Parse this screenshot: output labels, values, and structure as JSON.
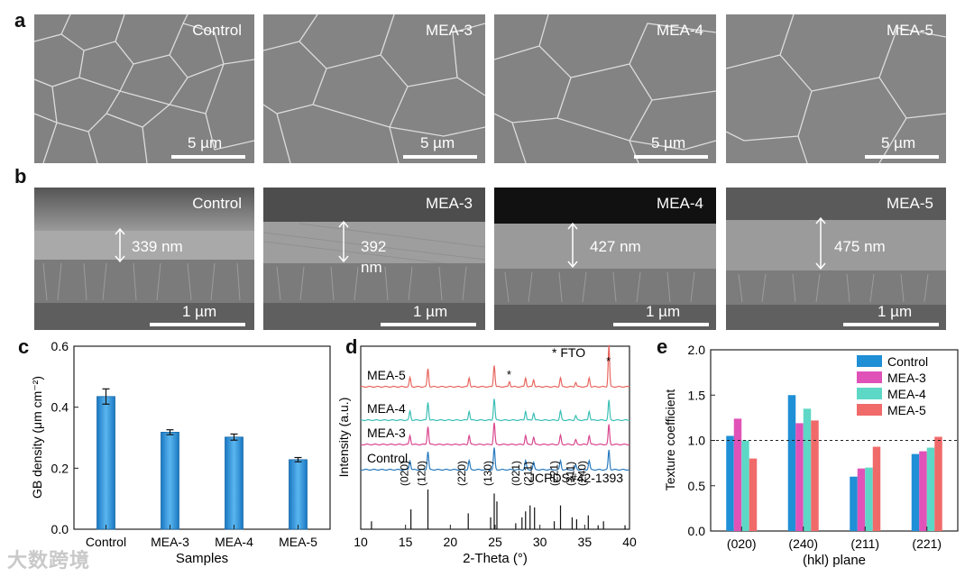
{
  "panel_labels": {
    "a": "a",
    "b": "b",
    "c": "c",
    "d": "d",
    "e": "e"
  },
  "row_a": {
    "images": [
      {
        "label": "Control",
        "scale": "5 µm"
      },
      {
        "label": "MEA-3",
        "scale": "5 µm"
      },
      {
        "label": "MEA-4",
        "scale": "5 µm"
      },
      {
        "label": "MEA-5",
        "scale": "5 µm"
      }
    ]
  },
  "row_b": {
    "images": [
      {
        "label": "Control",
        "thickness": "339 nm",
        "scale": "1 µm"
      },
      {
        "label": "MEA-3",
        "thickness_line1": "392",
        "thickness_line2": "nm",
        "scale": "1 µm"
      },
      {
        "label": "MEA-4",
        "thickness": "427 nm",
        "scale": "1 µm"
      },
      {
        "label": "MEA-5",
        "thickness": "475 nm",
        "scale": "1 µm"
      }
    ]
  },
  "colors": {
    "control": "#1f8fd6",
    "mea3": "#e052b8",
    "mea4": "#5ed8c6",
    "mea5": "#f06a6a",
    "xrd_mea5": "#e8675f",
    "xrd_mea4": "#3dbfb6",
    "xrd_mea3": "#d9488f",
    "xrd_control": "#2a7bbf"
  },
  "chart_data": [
    {
      "type": "bar",
      "panel": "c",
      "categories": [
        "Control",
        "MEA-3",
        "MEA-4",
        "MEA-5"
      ],
      "values": [
        0.435,
        0.318,
        0.302,
        0.228
      ],
      "errors": [
        0.025,
        0.008,
        0.01,
        0.007
      ],
      "xlabel": "Samples",
      "ylabel": "GB density (μm cm⁻²)",
      "ylim": [
        0.0,
        0.6
      ],
      "yticks": [
        "0.0",
        "0.2",
        "0.4",
        "0.6"
      ]
    },
    {
      "type": "line",
      "panel": "d",
      "xlabel": "2-Theta (°)",
      "ylabel": "Intensity (a.u.)",
      "xlim": [
        10,
        40
      ],
      "xticks": [
        "10",
        "15",
        "20",
        "25",
        "30",
        "35",
        "40"
      ],
      "annotation": "* FTO",
      "reference_label": "JCPDS#42-1393",
      "series": [
        "MEA-5",
        "MEA-4",
        "MEA-3",
        "Control"
      ],
      "peaks": [
        15.5,
        17.5,
        22.1,
        24.9,
        28.4,
        29.3,
        32.3,
        34.0,
        35.5,
        37.7
      ],
      "fto_peaks": [
        26.6,
        37.7
      ],
      "reference_peaks": [
        {
          "x": 11.2,
          "h": 0.2
        },
        {
          "x": 15.6,
          "h": 0.5
        },
        {
          "x": 17.5,
          "h": 1.0
        },
        {
          "x": 22.0,
          "h": 0.4
        },
        {
          "x": 24.5,
          "h": 0.3
        },
        {
          "x": 24.9,
          "h": 0.9
        },
        {
          "x": 25.2,
          "h": 0.7
        },
        {
          "x": 27.3,
          "h": 0.15
        },
        {
          "x": 28.0,
          "h": 0.3
        },
        {
          "x": 28.4,
          "h": 0.45
        },
        {
          "x": 28.9,
          "h": 0.6
        },
        {
          "x": 29.4,
          "h": 0.55
        },
        {
          "x": 31.6,
          "h": 0.2
        },
        {
          "x": 32.3,
          "h": 0.6
        },
        {
          "x": 33.6,
          "h": 0.3
        },
        {
          "x": 34.1,
          "h": 0.25
        },
        {
          "x": 35.4,
          "h": 0.35
        },
        {
          "x": 36.5,
          "h": 0.1
        },
        {
          "x": 37.1,
          "h": 0.2
        },
        {
          "x": 39.5,
          "h": 0.1
        }
      ],
      "peak_labels": [
        "(020)",
        "(120)",
        "(220)",
        "(130)",
        "(021)",
        "(211)",
        "(221)",
        "(311)",
        "(240)"
      ]
    },
    {
      "type": "bar",
      "panel": "e",
      "categories": [
        "(020)",
        "(240)",
        "(211)",
        "(221)"
      ],
      "series": [
        {
          "name": "Control",
          "values": [
            1.05,
            1.5,
            0.6,
            0.85
          ]
        },
        {
          "name": "MEA-3",
          "values": [
            1.24,
            1.19,
            0.69,
            0.88
          ]
        },
        {
          "name": "MEA-4",
          "values": [
            1.0,
            1.35,
            0.7,
            0.92
          ]
        },
        {
          "name": "MEA-5",
          "values": [
            0.8,
            1.22,
            0.93,
            1.04
          ]
        }
      ],
      "xlabel": "(hkl) plane",
      "ylabel": "Texture coefficient",
      "ylim": [
        0.0,
        2.0
      ],
      "yticks": [
        "0.0",
        "0.5",
        "1.0",
        "1.5",
        "2.0"
      ],
      "reference_line": 1.0
    }
  ],
  "watermark": "大数跨境"
}
